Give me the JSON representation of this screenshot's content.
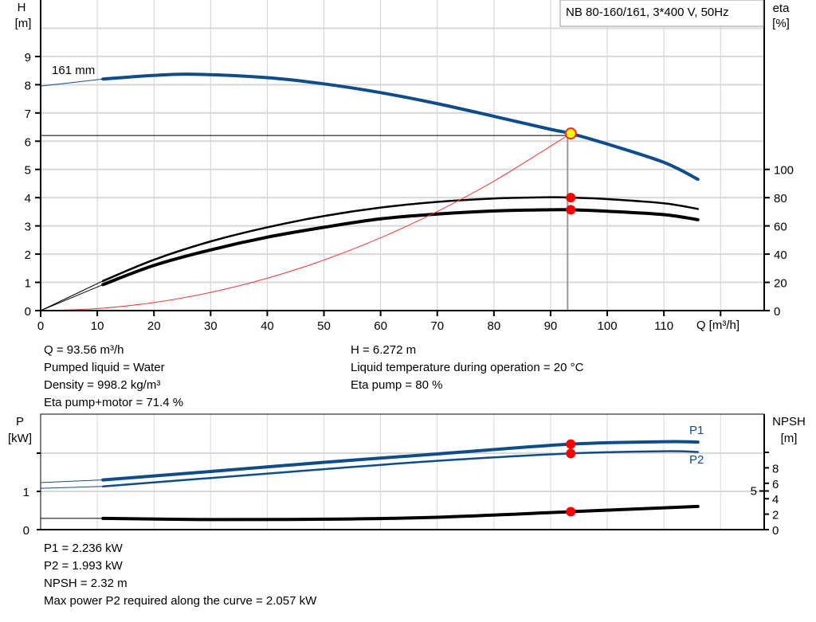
{
  "chart_data": [
    {
      "type": "line",
      "title": "NB 80-160/161, 3*400 V, 50Hz",
      "xlabel": "Q [m³/h]",
      "ylabel_left": [
        "H",
        "[m]"
      ],
      "ylabel_right": [
        "eta",
        "[%]"
      ],
      "xlim": [
        0,
        127.7
      ],
      "ylim_left": [
        0,
        11
      ],
      "ylim_right": [
        0,
        220
      ],
      "x_ticks": [
        0,
        10,
        20,
        30,
        40,
        50,
        60,
        70,
        80,
        90,
        100,
        110
      ],
      "y_ticks_left": [
        0,
        1,
        2,
        3,
        4,
        5,
        6,
        7,
        8,
        9
      ],
      "y_ticks_right": [
        0,
        20,
        40,
        60,
        80,
        100
      ],
      "grid": true,
      "curve_label": "161 mm",
      "series": [
        {
          "key": "H",
          "axis": "left",
          "color": "#0f4c8a",
          "x": [
            0,
            11,
            20,
            27,
            40,
            50,
            60,
            70,
            80,
            90,
            93.56,
            100,
            110,
            116
          ],
          "y": [
            7.95,
            8.2,
            8.33,
            8.37,
            8.25,
            8.03,
            7.72,
            7.33,
            6.88,
            6.42,
            6.272,
            5.9,
            5.25,
            4.65
          ]
        },
        {
          "key": "eta_pump",
          "axis": "right",
          "color": "#000000",
          "x": [
            0,
            11,
            20,
            30,
            40,
            50,
            60,
            70,
            80,
            90,
            93.56,
            100,
            110,
            116
          ],
          "y": [
            0,
            21,
            36,
            49,
            59,
            67,
            73,
            77,
            79.4,
            80.3,
            80,
            79,
            76,
            72
          ]
        },
        {
          "key": "eta_pump_motor",
          "axis": "right",
          "color": "#000000",
          "x": [
            0,
            11,
            20,
            30,
            40,
            50,
            60,
            70,
            80,
            90,
            93.56,
            100,
            110,
            116
          ],
          "y": [
            0,
            18.4,
            32,
            43,
            52,
            59,
            65,
            68.4,
            70.6,
            71.4,
            71.4,
            70.4,
            68,
            64.4
          ]
        },
        {
          "key": "system",
          "axis": "left",
          "color": "#ff3030",
          "x": [
            0,
            10,
            20,
            30,
            40,
            50,
            60,
            70,
            80,
            93.56
          ],
          "y": [
            0,
            0.072,
            0.287,
            0.645,
            1.146,
            1.791,
            2.578,
            3.509,
            4.584,
            6.272
          ]
        }
      ],
      "duty_point": {
        "Q": 93.56,
        "H": 6.272,
        "eta_pump": 80,
        "eta_pump_motor": 71.4,
        "color": "#ffff00"
      }
    },
    {
      "type": "line",
      "xlim": [
        0,
        127.7
      ],
      "ylabel_left": [
        "P",
        "[kW]"
      ],
      "ylabel_right": [
        "NPSH",
        "[m]"
      ],
      "ylim_left": [
        0,
        3
      ],
      "ylim_right": [
        0,
        15
      ],
      "y_ticks_left": [
        0,
        1,
        2
      ],
      "y_tick_labels_left": [
        "0",
        "1",
        ""
      ],
      "y_ticks_right": [
        0,
        2,
        4,
        5,
        6,
        8,
        10
      ],
      "y_tick_labels_right": [
        "0",
        "2",
        "4",
        "5",
        "6",
        "8",
        ""
      ],
      "grid": true,
      "series": [
        {
          "key": "P1",
          "name": "P1",
          "axis": "left",
          "color": "#0f4c8a",
          "x": [
            0,
            11,
            30,
            50,
            70,
            93.56,
            110,
            116
          ],
          "y": [
            1.23,
            1.3,
            1.52,
            1.76,
            1.98,
            2.236,
            2.3,
            2.29
          ]
        },
        {
          "key": "P2",
          "name": "P2",
          "axis": "left",
          "color": "#0f4c8a",
          "x": [
            0,
            11,
            30,
            50,
            70,
            93.56,
            110,
            116
          ],
          "y": [
            1.08,
            1.13,
            1.35,
            1.58,
            1.8,
            1.993,
            2.05,
            2.03
          ]
        },
        {
          "key": "NPSH",
          "axis": "right",
          "color": "#000000",
          "x": [
            0,
            11,
            30,
            50,
            70,
            93.56,
            116
          ],
          "y": [
            1.45,
            1.45,
            1.3,
            1.35,
            1.6,
            2.32,
            3.0
          ]
        }
      ],
      "duty_point": {
        "Q": 93.56,
        "P1": 2.236,
        "P2": 1.993,
        "NPSH": 2.32
      }
    }
  ],
  "info_top_left": [
    "Q = 93.56 m³/h",
    "Pumped liquid = Water",
    "Density = 998.2 kg/m³",
    "Eta pump+motor = 71.4 %"
  ],
  "info_top_right": [
    "H = 6.272 m",
    "Liquid temperature during operation = 20 °C",
    "Eta pump = 80 %"
  ],
  "info_bottom": [
    "P1 = 2.236 kW",
    "P2 = 1.993 kW",
    "NPSH = 2.32 m",
    "Max power P2 required along the curve = 2.057 kW"
  ]
}
